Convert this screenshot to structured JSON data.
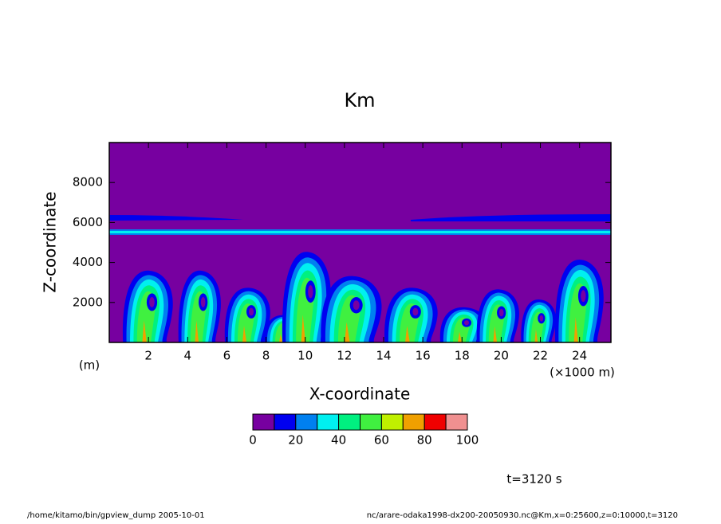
{
  "chart_data": {
    "type": "contour",
    "title": "Km",
    "x_label": "X-coordinate",
    "y_label": "Z-coordinate",
    "x_unit": "(×1000 m)",
    "y_unit": "(m)",
    "xlim": [
      0,
      25.6
    ],
    "xticks": [
      2,
      4,
      6,
      8,
      10,
      12,
      14,
      16,
      18,
      20,
      22,
      24
    ],
    "ylim": [
      0,
      10000
    ],
    "yticks": [
      2000,
      4000,
      6000,
      8000
    ],
    "colorbar": {
      "levels": [
        0,
        10,
        20,
        30,
        40,
        50,
        60,
        70,
        80,
        90,
        100
      ],
      "colors": [
        "#7700a0",
        "#0000f0",
        "#0080f0",
        "#00f0f0",
        "#00f080",
        "#40f040",
        "#c0f000",
        "#f0a000",
        "#f00000",
        "#f09090"
      ],
      "ticks": [
        0,
        20,
        40,
        60,
        80,
        100
      ]
    },
    "time_label": "t=3120 s",
    "footer_left": "/home/kitamo/bin/gpview_dump  2005-10-01",
    "footer_right": "nc/arare-odaka1998-dx200-20050930.nc@Km,x=0:25600,z=0:10000,t=3120"
  }
}
